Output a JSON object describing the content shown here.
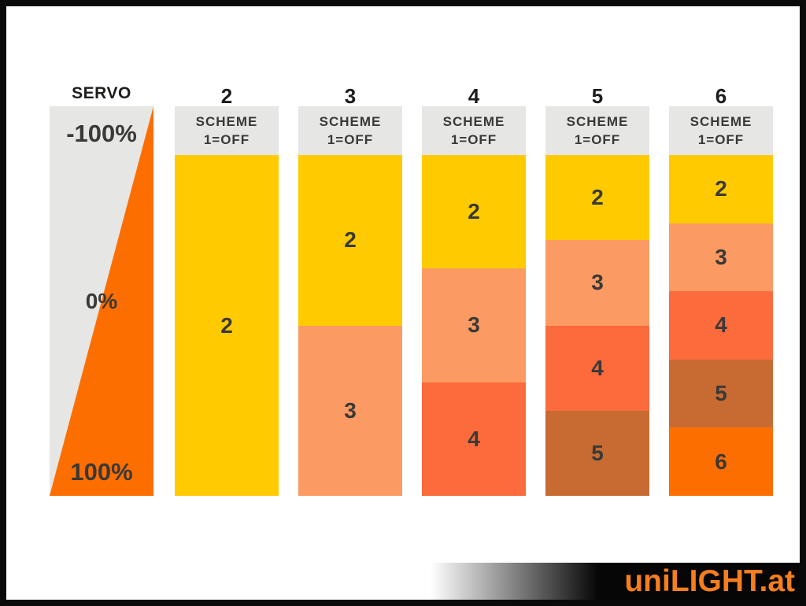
{
  "servo": {
    "label": "SERVO",
    "tick_top": "-100%",
    "tick_mid": "0%",
    "tick_bottom": "100%",
    "bg_color": "#e6e6e5",
    "wedge_color": "#fd6e00"
  },
  "columns": [
    {
      "number": "2",
      "header_line1": "SCHEME",
      "header_line2": "1=OFF",
      "segments": [
        {
          "label": "2",
          "color": "#FFCB00"
        }
      ]
    },
    {
      "number": "3",
      "header_line1": "SCHEME",
      "header_line2": "1=OFF",
      "segments": [
        {
          "label": "2",
          "color": "#FFCB00"
        },
        {
          "label": "3",
          "color": "#FC9A63"
        }
      ]
    },
    {
      "number": "4",
      "header_line1": "SCHEME",
      "header_line2": "1=OFF",
      "segments": [
        {
          "label": "2",
          "color": "#FFCB00"
        },
        {
          "label": "3",
          "color": "#FC9A63"
        },
        {
          "label": "4",
          "color": "#FB6B3B"
        }
      ]
    },
    {
      "number": "5",
      "header_line1": "SCHEME",
      "header_line2": "1=OFF",
      "segments": [
        {
          "label": "2",
          "color": "#FFCB00"
        },
        {
          "label": "3",
          "color": "#FC9A63"
        },
        {
          "label": "4",
          "color": "#FB6B3B"
        },
        {
          "label": "5",
          "color": "#C86B33"
        }
      ]
    },
    {
      "number": "6",
      "header_line1": "SCHEME",
      "header_line2": "1=OFF",
      "segments": [
        {
          "label": "2",
          "color": "#FFCB00"
        },
        {
          "label": "3",
          "color": "#FC9A63"
        },
        {
          "label": "4",
          "color": "#FB6B3B"
        },
        {
          "label": "5",
          "color": "#C86B33"
        },
        {
          "label": "6",
          "color": "#FD6E00"
        }
      ]
    }
  ],
  "logo": {
    "text": "uniLIGHT.at",
    "color": "#F57E1E"
  }
}
